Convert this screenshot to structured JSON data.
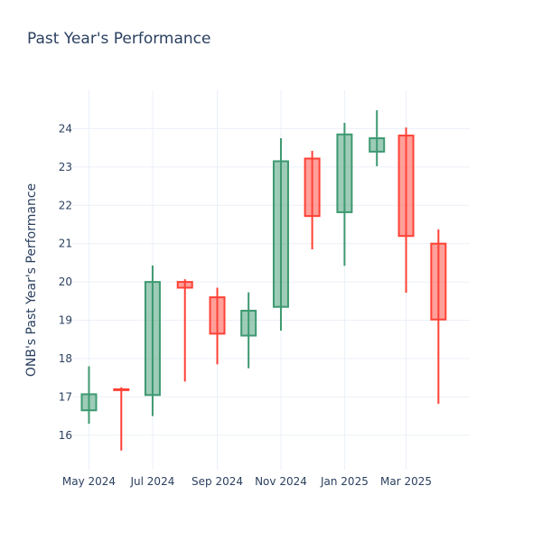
{
  "chart_data": {
    "type": "candlestick",
    "title": "Past Year's Performance",
    "xlabel": "",
    "ylabel": "ONB's Past Year's Performance",
    "ylim": [
      15.1,
      25.0
    ],
    "y_ticks": [
      16,
      17,
      18,
      19,
      20,
      21,
      22,
      23,
      24
    ],
    "x_ticks": [
      {
        "label": "May 2024",
        "date": "2024-05-01"
      },
      {
        "label": "Jul 2024",
        "date": "2024-07-01"
      },
      {
        "label": "Sep 2024",
        "date": "2024-09-01"
      },
      {
        "label": "Nov 2024",
        "date": "2024-11-01"
      },
      {
        "label": "Jan 2025",
        "date": "2025-01-01"
      },
      {
        "label": "Mar 2025",
        "date": "2025-03-01"
      }
    ],
    "grid": true,
    "increasing_color": "#3d9970",
    "decreasing_color": "#ff4136",
    "candles": [
      {
        "date": "2024-05-01",
        "open": 16.65,
        "high": 17.8,
        "low": 16.3,
        "close": 17.07
      },
      {
        "date": "2024-06-01",
        "open": 17.2,
        "high": 17.25,
        "low": 15.6,
        "close": 17.18
      },
      {
        "date": "2024-07-01",
        "open": 17.05,
        "high": 20.43,
        "low": 16.5,
        "close": 20.0
      },
      {
        "date": "2024-08-01",
        "open": 20.0,
        "high": 20.07,
        "low": 17.4,
        "close": 19.85
      },
      {
        "date": "2024-09-01",
        "open": 19.6,
        "high": 19.85,
        "low": 17.85,
        "close": 18.65
      },
      {
        "date": "2024-10-01",
        "open": 18.6,
        "high": 19.73,
        "low": 17.75,
        "close": 19.25
      },
      {
        "date": "2024-11-01",
        "open": 19.35,
        "high": 23.75,
        "low": 18.73,
        "close": 23.15
      },
      {
        "date": "2024-12-01",
        "open": 23.22,
        "high": 23.42,
        "low": 20.85,
        "close": 21.72
      },
      {
        "date": "2025-01-01",
        "open": 21.82,
        "high": 24.15,
        "low": 20.42,
        "close": 23.85
      },
      {
        "date": "2025-02-01",
        "open": 23.4,
        "high": 24.48,
        "low": 23.02,
        "close": 23.75
      },
      {
        "date": "2025-03-01",
        "open": 23.82,
        "high": 24.03,
        "low": 19.72,
        "close": 21.2
      },
      {
        "date": "2025-04-01",
        "open": 21.0,
        "high": 21.37,
        "low": 16.82,
        "close": 19.02
      }
    ]
  }
}
